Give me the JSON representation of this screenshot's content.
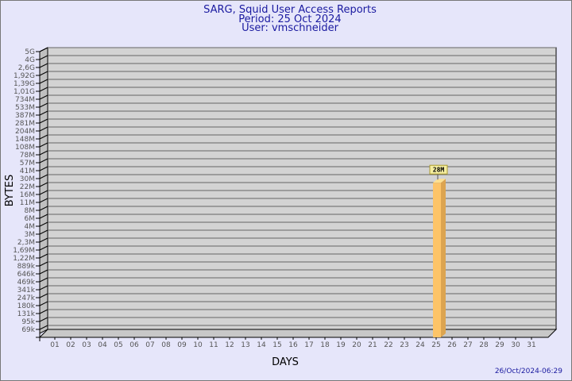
{
  "title_lines": [
    "SARG, Squid User Access Reports",
    "Period: 25 Oct 2024",
    "User: vmschneider"
  ],
  "footer_timestamp": "26/Oct/2024-06:29",
  "chart_data": {
    "type": "bar",
    "title": "SARG, Squid User Access Reports",
    "xlabel": "DAYS",
    "ylabel": "BYTES",
    "x_ticks": [
      "01",
      "02",
      "03",
      "04",
      "05",
      "06",
      "07",
      "08",
      "09",
      "10",
      "11",
      "12",
      "13",
      "14",
      "15",
      "16",
      "17",
      "18",
      "19",
      "20",
      "21",
      "22",
      "23",
      "24",
      "25",
      "26",
      "27",
      "28",
      "29",
      "30",
      "31"
    ],
    "y_ticks": [
      "5G",
      "4G",
      "2,6G",
      "1,92G",
      "1,39G",
      "1,01G",
      "734M",
      "533M",
      "387M",
      "281M",
      "204M",
      "148M",
      "108M",
      "78M",
      "57M",
      "41M",
      "30M",
      "22M",
      "16M",
      "11M",
      "8M",
      "6M",
      "4M",
      "3M",
      "2,3M",
      "1,69M",
      "1,22M",
      "889k",
      "646k",
      "469k",
      "341k",
      "247k",
      "180k",
      "131k",
      "95k",
      "69k"
    ],
    "y_scale": "log",
    "grid": true,
    "bars": [
      {
        "x": "25",
        "value": 28000000,
        "label": "28M"
      }
    ],
    "colors": {
      "bar": "#fdc468",
      "bar_side": "#dca450",
      "wall": "#d3d3d3",
      "label_box": "#f5eea0",
      "title": "#1a1aa0"
    }
  }
}
